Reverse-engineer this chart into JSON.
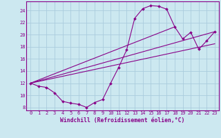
{
  "background_color": "#cce8f0",
  "grid_color": "#aaccdd",
  "line_color": "#880088",
  "xlabel": "Windchill (Refroidissement éolien,°C)",
  "xlim": [
    -0.5,
    23.5
  ],
  "ylim": [
    7.5,
    25.5
  ],
  "xticks": [
    0,
    1,
    2,
    3,
    4,
    5,
    6,
    7,
    8,
    9,
    10,
    11,
    12,
    13,
    14,
    15,
    16,
    17,
    18,
    19,
    20,
    21,
    22,
    23
  ],
  "yticks": [
    8,
    10,
    12,
    14,
    16,
    18,
    20,
    22,
    24
  ],
  "series1_x": [
    0,
    1,
    2,
    3,
    4,
    5,
    6,
    7,
    8,
    9,
    10,
    11,
    12,
    13,
    14,
    15,
    16,
    17,
    18,
    19,
    20,
    21,
    22,
    23
  ],
  "series1_y": [
    12.0,
    11.5,
    11.3,
    10.4,
    9.0,
    8.7,
    8.5,
    8.0,
    8.8,
    9.3,
    12.0,
    14.6,
    17.5,
    22.7,
    24.3,
    24.8,
    24.7,
    24.2,
    21.3,
    19.3,
    20.4,
    17.6,
    19.0,
    20.5
  ],
  "series2_x": [
    0,
    18
  ],
  "series2_y": [
    12.0,
    21.3
  ],
  "series3_x": [
    0,
    23
  ],
  "series3_y": [
    12.0,
    20.5
  ],
  "series4_x": [
    0,
    23
  ],
  "series4_y": [
    12.0,
    18.5
  ],
  "font_size": 5.5,
  "tick_font_size": 5.0,
  "xlabel_fontsize": 5.8
}
